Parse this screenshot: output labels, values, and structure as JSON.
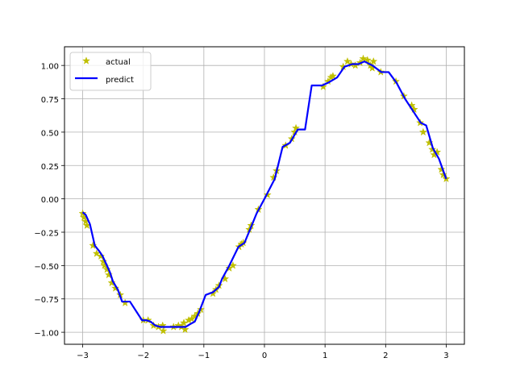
{
  "chart_data": {
    "type": "line",
    "title": "",
    "xlabel": "",
    "ylabel": "",
    "xlim": [
      -3.3,
      3.3
    ],
    "ylim": [
      -1.09,
      1.14
    ],
    "grid": true,
    "legend_position": "top-left",
    "xticks": [
      -3,
      -2,
      -1,
      0,
      1,
      2,
      3
    ],
    "xtick_labels": [
      "−3",
      "−2",
      "−1",
      "0",
      "1",
      "2",
      "3"
    ],
    "yticks": [
      -1.0,
      -0.75,
      -0.5,
      -0.25,
      0.0,
      0.25,
      0.5,
      0.75,
      1.0
    ],
    "ytick_labels": [
      "−1.00",
      "−0.75",
      "−0.50",
      "−0.25",
      "0.00",
      "0.25",
      "0.50",
      "0.75",
      "1.00"
    ],
    "series": [
      {
        "name": "actual",
        "style": "markers",
        "marker": "star",
        "color": "#bfbf00",
        "points": [
          [
            -3.0,
            -0.11
          ],
          [
            -2.98,
            -0.14
          ],
          [
            -2.95,
            -0.17
          ],
          [
            -2.93,
            -0.2
          ],
          [
            -2.83,
            -0.35
          ],
          [
            -2.77,
            -0.41
          ],
          [
            -2.7,
            -0.43
          ],
          [
            -2.66,
            -0.47
          ],
          [
            -2.64,
            -0.5
          ],
          [
            -2.6,
            -0.53
          ],
          [
            -2.57,
            -0.57
          ],
          [
            -2.52,
            -0.63
          ],
          [
            -2.46,
            -0.67
          ],
          [
            -2.38,
            -0.72
          ],
          [
            -2.3,
            -0.78
          ],
          [
            -2.0,
            -0.91
          ],
          [
            -1.92,
            -0.91
          ],
          [
            -1.83,
            -0.95
          ],
          [
            -1.75,
            -0.96
          ],
          [
            -1.68,
            -0.95
          ],
          [
            -1.67,
            -0.99
          ],
          [
            -1.5,
            -0.96
          ],
          [
            -1.42,
            -0.95
          ],
          [
            -1.37,
            -0.96
          ],
          [
            -1.33,
            -0.93
          ],
          [
            -1.31,
            -0.98
          ],
          [
            -1.25,
            -0.91
          ],
          [
            -1.2,
            -0.9
          ],
          [
            -1.15,
            -0.88
          ],
          [
            -1.1,
            -0.86
          ],
          [
            -1.05,
            -0.83
          ],
          [
            -0.85,
            -0.71
          ],
          [
            -0.8,
            -0.68
          ],
          [
            -0.75,
            -0.65
          ],
          [
            -0.65,
            -0.6
          ],
          [
            -0.58,
            -0.52
          ],
          [
            -0.52,
            -0.5
          ],
          [
            -0.42,
            -0.36
          ],
          [
            -0.38,
            -0.34
          ],
          [
            -0.35,
            -0.33
          ],
          [
            -0.25,
            -0.23
          ],
          [
            -0.22,
            -0.2
          ],
          [
            -0.1,
            -0.08
          ],
          [
            0.05,
            0.03
          ],
          [
            0.15,
            0.16
          ],
          [
            0.2,
            0.21
          ],
          [
            0.35,
            0.4
          ],
          [
            0.45,
            0.45
          ],
          [
            0.5,
            0.5
          ],
          [
            0.52,
            0.53
          ],
          [
            0.97,
            0.84
          ],
          [
            1.05,
            0.88
          ],
          [
            1.1,
            0.91
          ],
          [
            1.13,
            0.92
          ],
          [
            1.3,
            0.99
          ],
          [
            1.37,
            1.03
          ],
          [
            1.43,
            1.01
          ],
          [
            1.5,
            1.0
          ],
          [
            1.58,
            1.02
          ],
          [
            1.63,
            1.05
          ],
          [
            1.7,
            1.04
          ],
          [
            1.75,
            1.0
          ],
          [
            1.78,
            0.98
          ],
          [
            1.8,
            1.03
          ],
          [
            1.92,
            0.95
          ],
          [
            2.17,
            0.88
          ],
          [
            2.3,
            0.77
          ],
          [
            2.43,
            0.7
          ],
          [
            2.47,
            0.67
          ],
          [
            2.57,
            0.57
          ],
          [
            2.62,
            0.5
          ],
          [
            2.72,
            0.42
          ],
          [
            2.77,
            0.37
          ],
          [
            2.8,
            0.33
          ],
          [
            2.85,
            0.35
          ],
          [
            2.92,
            0.22
          ],
          [
            2.95,
            0.18
          ],
          [
            3.0,
            0.15
          ]
        ]
      },
      {
        "name": "predict",
        "style": "line",
        "color": "#0000ff",
        "points": [
          [
            -3.0,
            -0.1
          ],
          [
            -2.95,
            -0.12
          ],
          [
            -2.88,
            -0.19
          ],
          [
            -2.8,
            -0.35
          ],
          [
            -2.73,
            -0.39
          ],
          [
            -2.67,
            -0.43
          ],
          [
            -2.6,
            -0.5
          ],
          [
            -2.55,
            -0.55
          ],
          [
            -2.5,
            -0.62
          ],
          [
            -2.42,
            -0.68
          ],
          [
            -2.35,
            -0.77
          ],
          [
            -2.22,
            -0.77
          ],
          [
            -2.02,
            -0.91
          ],
          [
            -1.95,
            -0.91
          ],
          [
            -1.88,
            -0.92
          ],
          [
            -1.8,
            -0.95
          ],
          [
            -1.72,
            -0.96
          ],
          [
            -1.58,
            -0.96
          ],
          [
            -1.45,
            -0.96
          ],
          [
            -1.3,
            -0.96
          ],
          [
            -1.23,
            -0.94
          ],
          [
            -1.15,
            -0.92
          ],
          [
            -1.08,
            -0.85
          ],
          [
            -0.97,
            -0.72
          ],
          [
            -0.85,
            -0.7
          ],
          [
            -0.75,
            -0.66
          ],
          [
            -0.7,
            -0.6
          ],
          [
            -0.58,
            -0.5
          ],
          [
            -0.43,
            -0.36
          ],
          [
            -0.33,
            -0.33
          ],
          [
            -0.22,
            -0.21
          ],
          [
            -0.13,
            -0.11
          ],
          [
            0.0,
            0.0
          ],
          [
            0.17,
            0.15
          ],
          [
            0.3,
            0.39
          ],
          [
            0.42,
            0.42
          ],
          [
            0.55,
            0.52
          ],
          [
            0.67,
            0.52
          ],
          [
            0.78,
            0.85
          ],
          [
            0.95,
            0.85
          ],
          [
            1.05,
            0.87
          ],
          [
            1.2,
            0.91
          ],
          [
            1.32,
            0.99
          ],
          [
            1.45,
            1.01
          ],
          [
            1.55,
            1.01
          ],
          [
            1.65,
            1.03
          ],
          [
            1.78,
            1.0
          ],
          [
            1.93,
            0.95
          ],
          [
            2.05,
            0.95
          ],
          [
            2.18,
            0.87
          ],
          [
            2.32,
            0.75
          ],
          [
            2.45,
            0.66
          ],
          [
            2.58,
            0.57
          ],
          [
            2.67,
            0.55
          ],
          [
            2.78,
            0.38
          ],
          [
            2.88,
            0.3
          ],
          [
            3.0,
            0.15
          ]
        ]
      }
    ]
  }
}
